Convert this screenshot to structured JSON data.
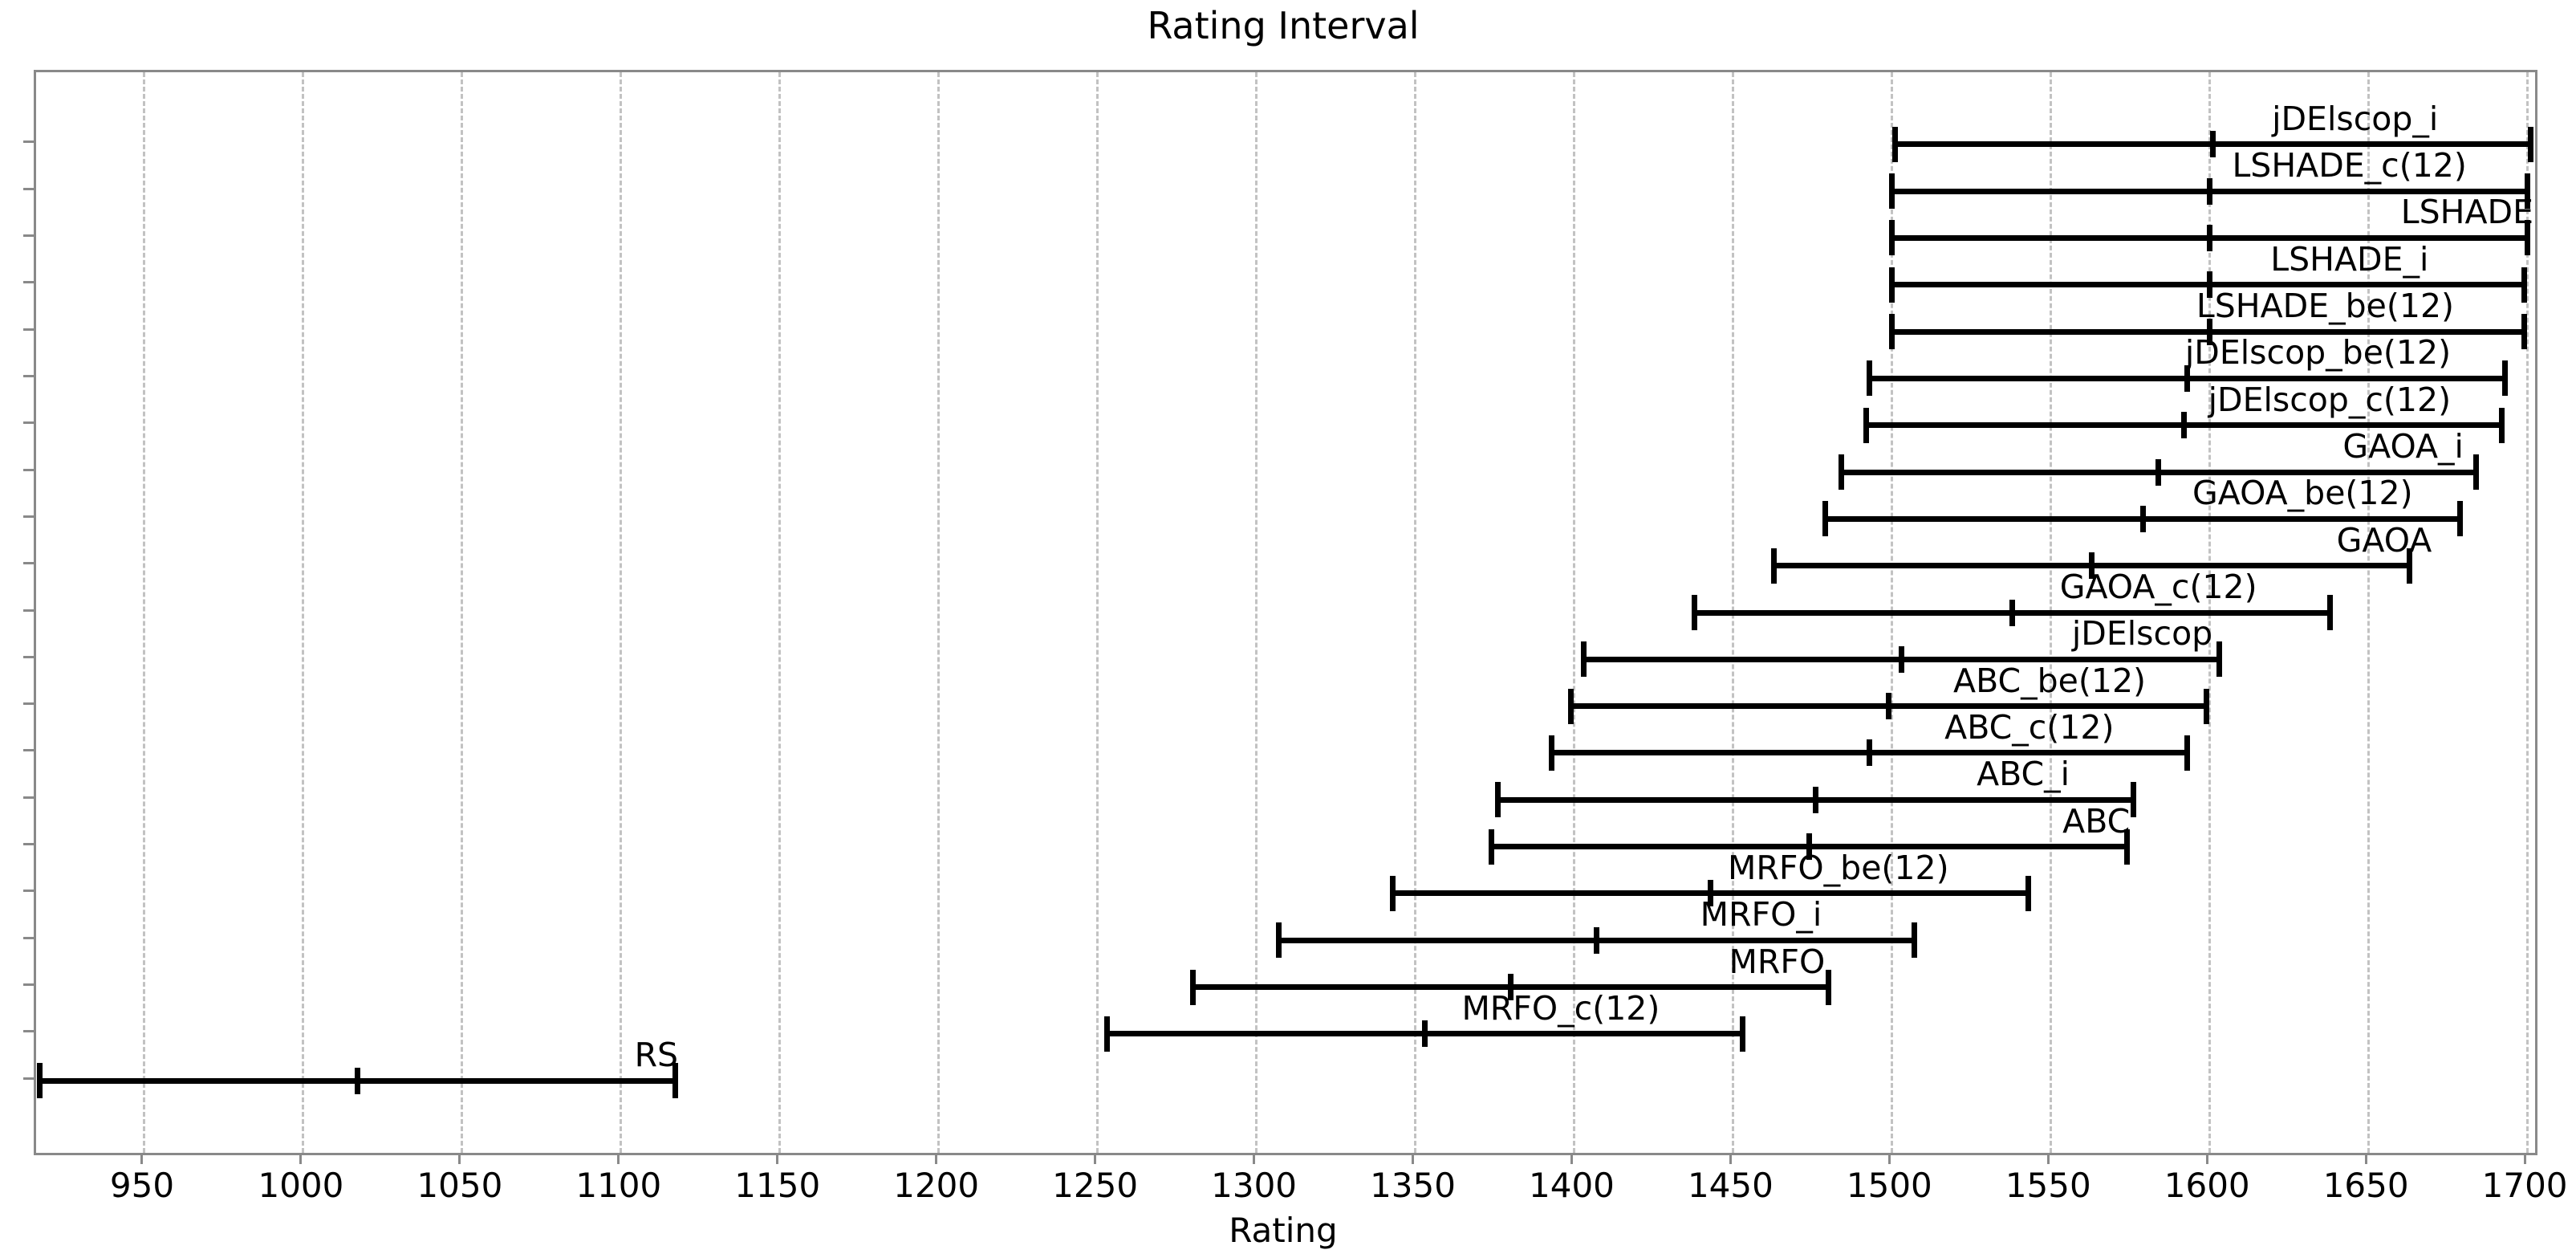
{
  "title": "Rating Interval",
  "x_axis": {
    "label": "Rating",
    "tick_values": [
      950,
      1000,
      1050,
      1100,
      1150,
      1200,
      1250,
      1300,
      1350,
      1400,
      1450,
      1500,
      1550,
      1600,
      1650,
      1700
    ]
  },
  "colors": {
    "bar": "#000000",
    "grid": "#c2c2c2",
    "spine": "#898989",
    "text": "#000000",
    "background": "#ffffff"
  },
  "chart_data": {
    "type": "scatter",
    "style": "horizontal-interval-errorbar",
    "title": "Rating Interval",
    "xlabel": "Rating",
    "xlim": [
      915.9,
      1702.5
    ],
    "grid": "vertical-dashed",
    "legend": "none",
    "series": [
      {
        "name": "jDElscop_i",
        "low": 1501,
        "mid": 1601,
        "high": 1701,
        "label_right_at": 1672
      },
      {
        "name": "LSHADE_c(12)",
        "low": 1500,
        "mid": 1600,
        "high": 1700,
        "label_right_at": 1681
      },
      {
        "name": "LSHADE",
        "low": 1500,
        "mid": 1600,
        "high": 1700,
        "label_right_at": 1702
      },
      {
        "name": "LSHADE_i",
        "low": 1500,
        "mid": 1600,
        "high": 1699,
        "label_right_at": 1669
      },
      {
        "name": "LSHADE_be(12)",
        "low": 1500,
        "mid": 1600,
        "high": 1699,
        "label_right_at": 1677
      },
      {
        "name": "jDElscop_be(12)",
        "low": 1493,
        "mid": 1593,
        "high": 1693,
        "label_right_at": 1676
      },
      {
        "name": "jDElscop_c(12)",
        "low": 1492,
        "mid": 1592,
        "high": 1692,
        "label_right_at": 1676
      },
      {
        "name": "GAOA_i",
        "low": 1484,
        "mid": 1584,
        "high": 1684,
        "label_right_at": 1680
      },
      {
        "name": "GAOA_be(12)",
        "low": 1479,
        "mid": 1579,
        "high": 1679,
        "label_right_at": 1664
      },
      {
        "name": "GAOA",
        "low": 1463,
        "mid": 1563,
        "high": 1663,
        "label_right_at": 1670
      },
      {
        "name": "GAOA_c(12)",
        "low": 1438,
        "mid": 1538,
        "high": 1638,
        "label_right_at": 1615
      },
      {
        "name": "jDElscop",
        "low": 1403,
        "mid": 1503,
        "high": 1603,
        "label_right_at": 1601
      },
      {
        "name": "ABC_be(12)",
        "low": 1399,
        "mid": 1499,
        "high": 1599,
        "label_right_at": 1580
      },
      {
        "name": "ABC_c(12)",
        "low": 1393,
        "mid": 1493,
        "high": 1593,
        "label_right_at": 1570
      },
      {
        "name": "ABC_i",
        "low": 1376,
        "mid": 1476,
        "high": 1576,
        "label_right_at": 1556
      },
      {
        "name": "ABC",
        "low": 1374,
        "mid": 1474,
        "high": 1574,
        "label_right_at": 1575
      },
      {
        "name": "MRFO_be(12)",
        "low": 1343,
        "mid": 1443,
        "high": 1543,
        "label_right_at": 1518
      },
      {
        "name": "MRFO_i",
        "low": 1307,
        "mid": 1407,
        "high": 1507,
        "label_right_at": 1478
      },
      {
        "name": "MRFO",
        "low": 1280,
        "mid": 1380,
        "high": 1480,
        "label_right_at": 1479
      },
      {
        "name": "MRFO_c(12)",
        "low": 1253,
        "mid": 1353,
        "high": 1453,
        "label_right_at": 1427
      },
      {
        "name": "RS",
        "low": 917,
        "mid": 1017,
        "high": 1117,
        "label_right_at": 1118
      }
    ]
  }
}
